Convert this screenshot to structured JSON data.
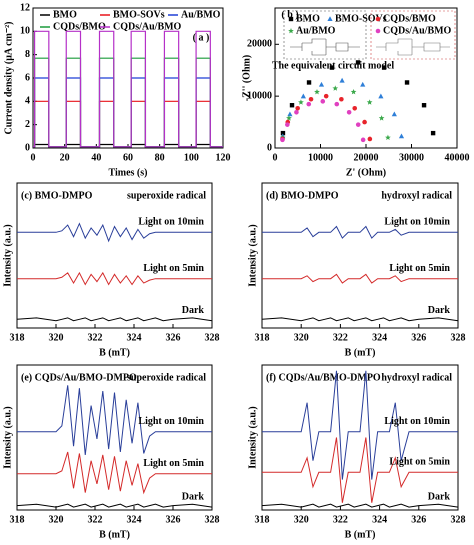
{
  "chart_data": [
    {
      "type": "line",
      "panel_label": "( a )",
      "x_label": "Times (s)",
      "y_label": "Current density (μA cm⁻²)",
      "x": [
        0,
        1,
        1,
        10,
        10,
        21,
        21,
        30,
        30,
        42,
        42,
        51,
        51,
        62,
        62,
        71,
        71,
        83,
        83,
        92,
        92,
        103,
        103,
        112,
        112,
        120
      ],
      "series": [
        {
          "name": "BMO",
          "color": "#000000",
          "values": [
            0.1,
            0.1,
            0.3,
            0.3,
            0.1,
            0.1,
            0.3,
            0.3,
            0.1,
            0.1,
            0.3,
            0.3,
            0.1,
            0.1,
            0.3,
            0.3,
            0.1,
            0.1,
            0.3,
            0.3,
            0.1,
            0.1,
            0.3,
            0.3,
            0.1,
            0.1
          ]
        },
        {
          "name": "BMO-SOVs",
          "color": "#e8141b",
          "values": [
            0.1,
            0.1,
            4,
            4,
            0.1,
            0.1,
            4,
            4,
            0.1,
            0.1,
            4,
            4,
            0.1,
            0.1,
            4,
            4,
            0.1,
            0.1,
            4,
            4,
            0.1,
            0.1,
            4,
            4,
            0.1,
            0.1
          ]
        },
        {
          "name": "Au/BMO",
          "color": "#1f3fd6",
          "values": [
            0.1,
            0.1,
            6,
            6,
            0.1,
            0.1,
            6,
            6,
            0.1,
            0.1,
            6,
            6,
            0.1,
            0.1,
            6,
            6,
            0.1,
            0.1,
            6,
            6,
            0.1,
            0.1,
            6,
            6,
            0.1,
            0.1
          ]
        },
        {
          "name": "CQDs/BMO",
          "color": "#1a9a3a",
          "values": [
            0.1,
            0.1,
            7.7,
            7.7,
            0.1,
            0.1,
            7.7,
            7.7,
            0.1,
            0.1,
            7.7,
            7.7,
            0.1,
            0.1,
            7.7,
            7.7,
            0.1,
            0.1,
            7.7,
            7.7,
            0.1,
            0.1,
            7.7,
            7.7,
            0.1,
            0.1
          ]
        },
        {
          "name": "CQDs/Au/BMO",
          "color": "#b530c8",
          "values": [
            0.1,
            0.1,
            10,
            10,
            0.1,
            0.1,
            10,
            10,
            0.1,
            0.1,
            10,
            10,
            0.1,
            0.1,
            10,
            10,
            0.1,
            0.1,
            10,
            10,
            0.1,
            0.1,
            10,
            10,
            0.1,
            0.1
          ]
        }
      ],
      "xlim": [
        0,
        120
      ],
      "ylim": [
        0,
        12
      ],
      "xticks": [
        0,
        20,
        40,
        60,
        80,
        100,
        120
      ],
      "yticks": [
        0,
        2,
        4,
        6,
        8,
        10,
        12
      ],
      "legend": "top"
    },
    {
      "type": "scatter",
      "panel_label": "( b )",
      "x_label": "Z' (Ohm)",
      "y_label": "-Z'' (Ohm)",
      "annotation": "The equivalent circuit model",
      "series": [
        {
          "name": "BMO",
          "color": "#000000",
          "marker": "square",
          "x": [
            1750,
            3740,
            7480,
            12520,
            18250,
            23980,
            29020,
            32760,
            34750
          ],
          "values": [
            2870,
            8250,
            12640,
            15510,
            16500,
            15510,
            12640,
            8250,
            2870
          ]
        },
        {
          "name": "BMO-SOVs",
          "color": "#2f7fd8",
          "marker": "triangle",
          "x": [
            1700,
            3280,
            6230,
            10220,
            14750,
            19280,
            23270,
            26230,
            27800
          ],
          "values": [
            2260,
            6500,
            9960,
            12220,
            13000,
            12220,
            9960,
            6500,
            2260
          ]
        },
        {
          "name": "Au/BMO",
          "color": "#3aa84a",
          "marker": "star",
          "x": [
            1680,
            3070,
            5700,
            9230,
            13250,
            17270,
            20800,
            23430,
            24820
          ],
          "values": [
            2000,
            5750,
            8810,
            10810,
            11500,
            10810,
            8810,
            5750,
            2000
          ]
        },
        {
          "name": "CQDs/BMO",
          "color": "#e8242b",
          "marker": "circle",
          "x": [
            1650,
            2810,
            4980,
            7920,
            11250,
            14590,
            17520,
            19690,
            20850
          ],
          "values": [
            1740,
            5000,
            7660,
            9400,
            10000,
            9400,
            7660,
            5000,
            1740
          ]
        },
        {
          "name": "CQDs/Au/BMO",
          "color": "#e040c0",
          "marker": "circle",
          "x": [
            1640,
            2710,
            4710,
            7420,
            10500,
            13580,
            16290,
            18290,
            19370
          ],
          "values": [
            1570,
            4500,
            6890,
            8460,
            9000,
            8460,
            6890,
            4500,
            1570
          ]
        }
      ],
      "xlim": [
        0,
        40000
      ],
      "ylim": [
        0,
        27000
      ],
      "xticks": [
        0,
        10000,
        20000,
        30000,
        40000
      ],
      "yticks": [
        0,
        10000,
        20000
      ],
      "legend": "upper left"
    },
    {
      "type": "line",
      "title": "(c) BMO-DMPO",
      "subtitle": "superoxide radical",
      "x_label": "B (mT)",
      "y_label": "Intensity (a.u.)",
      "x": [
        318,
        319,
        320,
        320.3,
        320.6,
        320.9,
        321.2,
        321.5,
        321.8,
        322.1,
        322.4,
        322.7,
        323,
        323.3,
        323.6,
        323.9,
        324.2,
        324.5,
        324.8,
        325.1,
        325.5,
        326,
        327,
        328
      ],
      "series": [
        {
          "name": "Light on 10min",
          "color": "#2a3f9a",
          "values": [
            6.6,
            6.6,
            6.6,
            6.7,
            7.1,
            6.3,
            7.2,
            6.2,
            6.9,
            6.4,
            7.1,
            6.0,
            7.0,
            6.3,
            6.9,
            6.1,
            6.8,
            6.2,
            6.5,
            6.6,
            6.6,
            6.6,
            6.6,
            6.6
          ]
        },
        {
          "name": "Light on 5min",
          "color": "#d42a2a",
          "values": [
            3.4,
            3.4,
            3.4,
            3.5,
            3.8,
            3.1,
            3.8,
            3.0,
            3.7,
            3.2,
            3.8,
            3.0,
            3.7,
            3.1,
            3.6,
            3.0,
            3.6,
            3.1,
            3.3,
            3.4,
            3.4,
            3.4,
            3.4,
            3.4
          ]
        },
        {
          "name": "Dark",
          "color": "#000000",
          "values": [
            0.6,
            0.7,
            0.5,
            0.6,
            0.7,
            0.5,
            0.6,
            0.7,
            0.5,
            0.6,
            0.7,
            0.5,
            0.6,
            0.7,
            0.5,
            0.6,
            0.7,
            0.5,
            0.6,
            0.7,
            0.5,
            0.6,
            0.7,
            0.5
          ]
        }
      ],
      "xlim": [
        318,
        328
      ],
      "ylim": [
        0,
        10
      ],
      "xticks": [
        318,
        320,
        322,
        324,
        326,
        328
      ]
    },
    {
      "type": "line",
      "title": "(d) BMO-DMPO",
      "subtitle": "hydroxyl radical",
      "x_label": "B (mT)",
      "y_label": "Intensity (a.u.)",
      "x": [
        318,
        319,
        320,
        320.3,
        320.6,
        320.9,
        321.2,
        321.5,
        321.8,
        322.1,
        322.4,
        322.7,
        323,
        323.3,
        323.6,
        323.9,
        324.2,
        324.5,
        324.8,
        325.1,
        325.5,
        326,
        327,
        328
      ],
      "series": [
        {
          "name": "Light on 10min",
          "color": "#2a3f9a",
          "values": [
            6.6,
            6.6,
            6.6,
            6.9,
            6.3,
            6.6,
            6.6,
            6.6,
            7.0,
            6.2,
            6.6,
            6.6,
            6.6,
            7.0,
            6.2,
            6.6,
            6.6,
            6.6,
            6.8,
            6.4,
            6.6,
            6.6,
            6.6,
            6.6
          ]
        },
        {
          "name": "Light on 5min",
          "color": "#d42a2a",
          "values": [
            3.4,
            3.4,
            3.4,
            3.6,
            3.2,
            3.4,
            3.4,
            3.4,
            3.7,
            3.1,
            3.4,
            3.4,
            3.4,
            3.7,
            3.1,
            3.4,
            3.4,
            3.4,
            3.6,
            3.2,
            3.4,
            3.4,
            3.4,
            3.4
          ]
        },
        {
          "name": "Dark",
          "color": "#000000",
          "values": [
            0.6,
            0.7,
            0.5,
            0.6,
            0.7,
            0.5,
            0.6,
            0.7,
            0.5,
            0.6,
            0.7,
            0.5,
            0.6,
            0.7,
            0.5,
            0.6,
            0.7,
            0.5,
            0.6,
            0.7,
            0.5,
            0.6,
            0.7,
            0.5
          ]
        }
      ],
      "xlim": [
        318,
        328
      ],
      "ylim": [
        0,
        10
      ],
      "xticks": [
        318,
        320,
        322,
        324,
        326,
        328
      ]
    },
    {
      "type": "line",
      "title": "(e) CQDs/Au/BMO-DMPO",
      "subtitle": "superoxide radical",
      "x_label": "B (mT)",
      "y_label": "Intensity (a.u.)",
      "x": [
        318,
        319,
        320,
        320.3,
        320.6,
        320.9,
        321.2,
        321.5,
        321.8,
        322.1,
        322.4,
        322.7,
        323,
        323.3,
        323.6,
        323.9,
        324.2,
        324.5,
        324.8,
        325.1,
        325.5,
        326,
        327,
        328
      ],
      "series": [
        {
          "name": "Light on 10min",
          "color": "#2a3f9a",
          "values": [
            5.4,
            5.4,
            5.4,
            5.8,
            8.6,
            4.4,
            8.4,
            3.8,
            7.2,
            4.9,
            8.2,
            4.2,
            8.1,
            4.0,
            7.6,
            4.6,
            7.4,
            3.9,
            5.1,
            5.4,
            5.4,
            5.4,
            5.4,
            5.4
          ]
        },
        {
          "name": "Light on 5min",
          "color": "#d42a2a",
          "values": [
            2.5,
            2.5,
            2.5,
            2.7,
            4.0,
            1.5,
            3.9,
            1.2,
            3.4,
            1.8,
            3.8,
            1.4,
            3.7,
            1.3,
            3.4,
            1.7,
            3.2,
            1.2,
            2.2,
            2.5,
            2.5,
            2.5,
            2.5,
            2.5
          ]
        },
        {
          "name": "Dark",
          "color": "#000000",
          "values": [
            0.3,
            0.4,
            0.2,
            0.3,
            0.4,
            0.2,
            0.3,
            0.4,
            0.2,
            0.3,
            0.4,
            0.2,
            0.3,
            0.4,
            0.2,
            0.3,
            0.4,
            0.2,
            0.3,
            0.4,
            0.2,
            0.3,
            0.4,
            0.2
          ]
        }
      ],
      "xlim": [
        318,
        328
      ],
      "ylim": [
        0,
        10
      ],
      "xticks": [
        318,
        320,
        322,
        324,
        326,
        328
      ]
    },
    {
      "type": "line",
      "title": "(f) CQDs/Au/BMO-DMPO",
      "subtitle": "hydroxyl radical",
      "x_label": "B (mT)",
      "y_label": "Intensity (a.u.)",
      "x": [
        318,
        319,
        320,
        320.3,
        320.6,
        320.9,
        321.2,
        321.5,
        321.8,
        322.1,
        322.4,
        322.7,
        323,
        323.3,
        323.6,
        323.9,
        324.2,
        324.5,
        324.8,
        325.1,
        325.5,
        326,
        327,
        328
      ],
      "series": [
        {
          "name": "Light on 10min",
          "color": "#2a3f9a",
          "values": [
            5.4,
            5.4,
            5.4,
            7.4,
            3.4,
            5.4,
            5.4,
            5.4,
            9.6,
            2.1,
            5.4,
            5.4,
            5.4,
            9.6,
            2.1,
            5.4,
            5.4,
            5.4,
            7.4,
            3.4,
            5.4,
            5.4,
            5.4,
            5.4
          ]
        },
        {
          "name": "Light on 5min",
          "color": "#d42a2a",
          "values": [
            2.6,
            2.6,
            2.6,
            3.6,
            1.6,
            2.6,
            2.6,
            2.6,
            5.0,
            0.5,
            2.6,
            2.6,
            2.6,
            5.0,
            0.5,
            2.6,
            2.6,
            2.6,
            3.6,
            1.6,
            2.6,
            2.6,
            2.6,
            2.6
          ]
        },
        {
          "name": "Dark",
          "color": "#000000",
          "values": [
            0.3,
            0.4,
            0.2,
            0.3,
            0.4,
            0.2,
            0.3,
            0.4,
            0.2,
            0.3,
            0.4,
            0.2,
            0.3,
            0.4,
            0.2,
            0.3,
            0.4,
            0.2,
            0.3,
            0.4,
            0.2,
            0.3,
            0.4,
            0.2
          ]
        }
      ],
      "xlim": [
        318,
        328
      ],
      "ylim": [
        0,
        10
      ],
      "xticks": [
        318,
        320,
        322,
        324,
        326,
        328
      ]
    }
  ]
}
